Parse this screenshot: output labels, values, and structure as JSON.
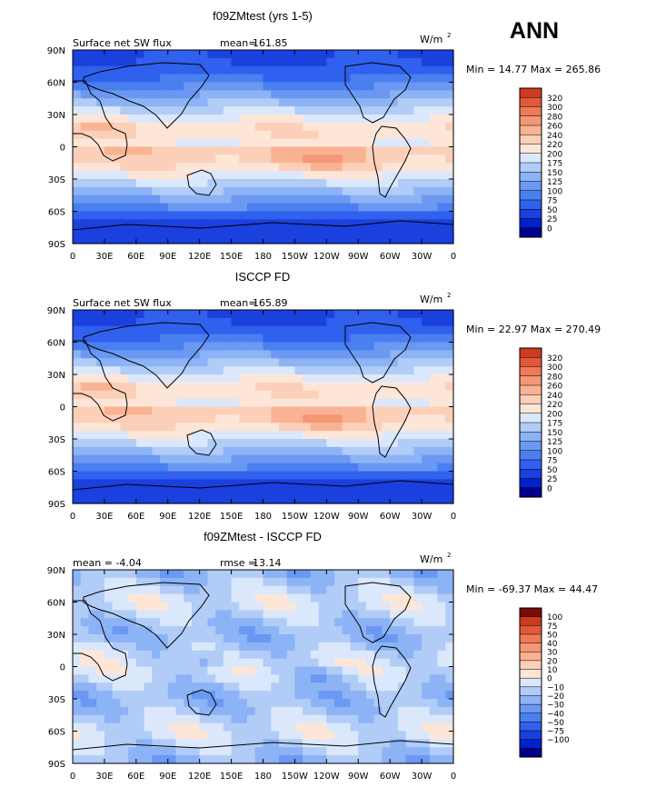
{
  "season": "ANN",
  "units_base": "W/m",
  "units_exp": "2",
  "colors": {
    "sw_levels": [
      "#00008b",
      "#0022cc",
      "#1a40dd",
      "#3060ee",
      "#4a7ff0",
      "#6a98f2",
      "#8cb3f5",
      "#b0ccf7",
      "#dbe8fb",
      "#fde6d8",
      "#fcd0b8",
      "#f9b393",
      "#f49774",
      "#ee7a58",
      "#e2583c",
      "#cc3a22",
      "#a01c10",
      "#7a0a06"
    ],
    "diff_levels": [
      "#00008b",
      "#0022cc",
      "#1a40dd",
      "#3060ee",
      "#4a7ff0",
      "#6a98f2",
      "#8cb3f5",
      "#b0ccf7",
      "#dbe8fb",
      "#fde6d8",
      "#fcd0b8",
      "#f9b393",
      "#f49774",
      "#ee7a58",
      "#e2583c",
      "#cc3a22",
      "#7a0a06"
    ]
  },
  "chart_data": [
    {
      "type": "heatmap",
      "title": "f09ZMtest (yrs 1-5)",
      "left_label": "Surface net SW flux",
      "mean_label": "mean=",
      "mean_value": "161.85",
      "stats": "Min =  14.77 Max = 265.86",
      "min": 14.77,
      "max": 265.86,
      "x_ticks": [
        "0",
        "30E",
        "60E",
        "90E",
        "120E",
        "150E",
        "180",
        "150W",
        "120W",
        "90W",
        "60W",
        "30W",
        "0"
      ],
      "y_ticks": [
        "90N",
        "60N",
        "30N",
        "0",
        "30S",
        "60S",
        "90S"
      ],
      "colorbar_labels": [
        "320",
        "300",
        "280",
        "260",
        "240",
        "220",
        "200",
        "175",
        "150",
        "125",
        "100",
        "75",
        "50",
        "25",
        "0"
      ]
    },
    {
      "type": "heatmap",
      "title": "ISCCP FD",
      "left_label": "Surface net SW flux",
      "mean_label": "mean=",
      "mean_value": "165.89",
      "stats": "Min =  22.97 Max = 270.49",
      "min": 22.97,
      "max": 270.49,
      "x_ticks": [
        "0",
        "30E",
        "60E",
        "90E",
        "120E",
        "150E",
        "180",
        "150W",
        "120W",
        "90W",
        "60W",
        "30W",
        "0"
      ],
      "y_ticks": [
        "90N",
        "60N",
        "30N",
        "0",
        "30S",
        "60S",
        "90S"
      ],
      "colorbar_labels": [
        "320",
        "300",
        "280",
        "260",
        "240",
        "220",
        "200",
        "175",
        "150",
        "125",
        "100",
        "75",
        "50",
        "25",
        "0"
      ]
    },
    {
      "type": "heatmap",
      "title": "f09ZMtest - ISCCP FD",
      "left_label": "mean =   -4.04",
      "mean_label": "rmse =",
      "mean_value": "13.14",
      "stats": "Min = -69.37 Max =  44.47",
      "min": -69.37,
      "max": 44.47,
      "x_ticks": [
        "0",
        "30E",
        "60E",
        "90E",
        "120E",
        "150E",
        "180",
        "150W",
        "120W",
        "90W",
        "60W",
        "30W",
        "0"
      ],
      "y_ticks": [
        "90N",
        "60N",
        "30N",
        "0",
        "30S",
        "60S",
        "90S"
      ],
      "colorbar_labels": [
        "100",
        "75",
        "50",
        "40",
        "30",
        "20",
        "10",
        "0",
        "−10",
        "−20",
        "−30",
        "−40",
        "−50",
        "−75",
        "−100"
      ]
    }
  ]
}
